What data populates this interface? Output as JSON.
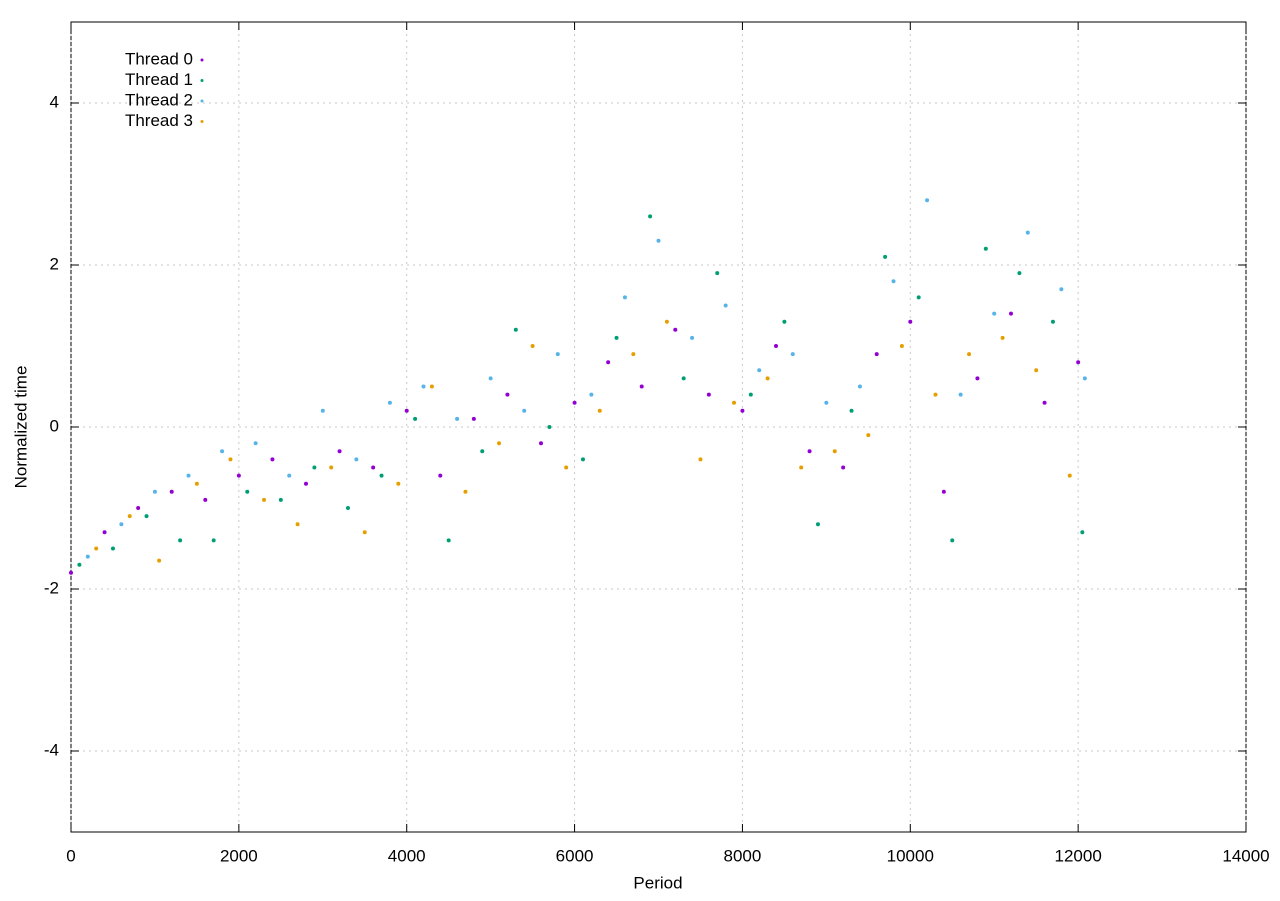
{
  "chart_data": {
    "type": "scatter",
    "x_label": "Period",
    "y_label": "Normalized time",
    "xlim": [
      0,
      14000
    ],
    "xticks": [
      0,
      2000,
      4000,
      6000,
      8000,
      10000,
      12000,
      14000
    ],
    "ylim": [
      -5,
      5
    ],
    "yticks": [
      -4,
      -2,
      0,
      2,
      4
    ],
    "grid": true,
    "legend": "top-left",
    "series": [
      {
        "name": "Thread 0",
        "color": "#9400d3",
        "x": [
          0,
          400,
          800,
          1200,
          1600,
          2000,
          2400,
          2800,
          3200,
          3600,
          4000,
          4400,
          4800,
          5200,
          5600,
          6000,
          6400,
          6800,
          7200,
          7600,
          8000,
          8400,
          8800,
          9200,
          9600,
          10000,
          10400,
          10800,
          11200,
          11600,
          12000
        ],
        "values": [
          -1.8,
          -1.3,
          -1.0,
          -0.8,
          -0.9,
          -0.6,
          -0.4,
          -0.7,
          -0.3,
          -0.5,
          0.2,
          -0.6,
          0.1,
          0.4,
          -0.2,
          0.3,
          0.8,
          0.5,
          1.2,
          0.4,
          0.2,
          1.0,
          -0.3,
          -0.5,
          0.9,
          1.3,
          -0.8,
          0.6,
          1.4,
          0.3,
          0.8
        ]
      },
      {
        "name": "Thread 1",
        "color": "#009e73",
        "x": [
          100,
          500,
          900,
          1300,
          1700,
          2100,
          2500,
          2900,
          3300,
          3700,
          4100,
          4500,
          4900,
          5300,
          5700,
          6100,
          6500,
          6900,
          7300,
          7700,
          8100,
          8500,
          8900,
          9300,
          9700,
          10100,
          10500,
          10900,
          11300,
          11700,
          12050
        ],
        "values": [
          -1.7,
          -1.5,
          -1.1,
          -1.4,
          -1.4,
          -0.8,
          -0.9,
          -0.5,
          -1.0,
          -0.6,
          0.1,
          -1.4,
          -0.3,
          1.2,
          0.0,
          -0.4,
          1.1,
          2.6,
          0.6,
          1.9,
          0.4,
          1.3,
          -1.2,
          0.2,
          2.1,
          1.6,
          -1.4,
          2.2,
          1.9,
          1.3,
          -1.3
        ]
      },
      {
        "name": "Thread 2",
        "color": "#56b4e9",
        "x": [
          200,
          600,
          1000,
          1400,
          1800,
          2200,
          2600,
          3000,
          3400,
          3800,
          4200,
          4600,
          5000,
          5400,
          5800,
          6200,
          6600,
          7000,
          7400,
          7800,
          8200,
          8600,
          9000,
          9400,
          9800,
          10200,
          10600,
          11000,
          11400,
          11800,
          12080
        ],
        "values": [
          -1.6,
          -1.2,
          -0.8,
          -0.6,
          -0.3,
          -0.2,
          -0.6,
          0.2,
          -0.4,
          0.3,
          0.5,
          0.1,
          0.6,
          0.2,
          0.9,
          0.4,
          1.6,
          2.3,
          1.1,
          1.5,
          0.7,
          0.9,
          0.3,
          0.5,
          1.8,
          2.8,
          0.4,
          1.4,
          2.4,
          1.7,
          0.6
        ]
      },
      {
        "name": "Thread 3",
        "color": "#e69f00",
        "x": [
          300,
          700,
          1050,
          1500,
          1900,
          2300,
          2700,
          3100,
          3500,
          3900,
          4300,
          4700,
          5100,
          5500,
          5900,
          6300,
          6700,
          7100,
          7500,
          7900,
          8300,
          8700,
          9100,
          9500,
          9900,
          10300,
          10700,
          11100,
          11500,
          11900
        ],
        "values": [
          -1.5,
          -1.1,
          -1.65,
          -0.7,
          -0.4,
          -0.9,
          -1.2,
          -0.5,
          -1.3,
          -0.7,
          0.5,
          -0.8,
          -0.2,
          1.0,
          -0.5,
          0.2,
          0.9,
          1.3,
          -0.4,
          0.3,
          0.6,
          -0.5,
          -0.3,
          -0.1,
          1.0,
          0.4,
          0.9,
          1.1,
          0.7,
          -0.6
        ]
      }
    ]
  }
}
